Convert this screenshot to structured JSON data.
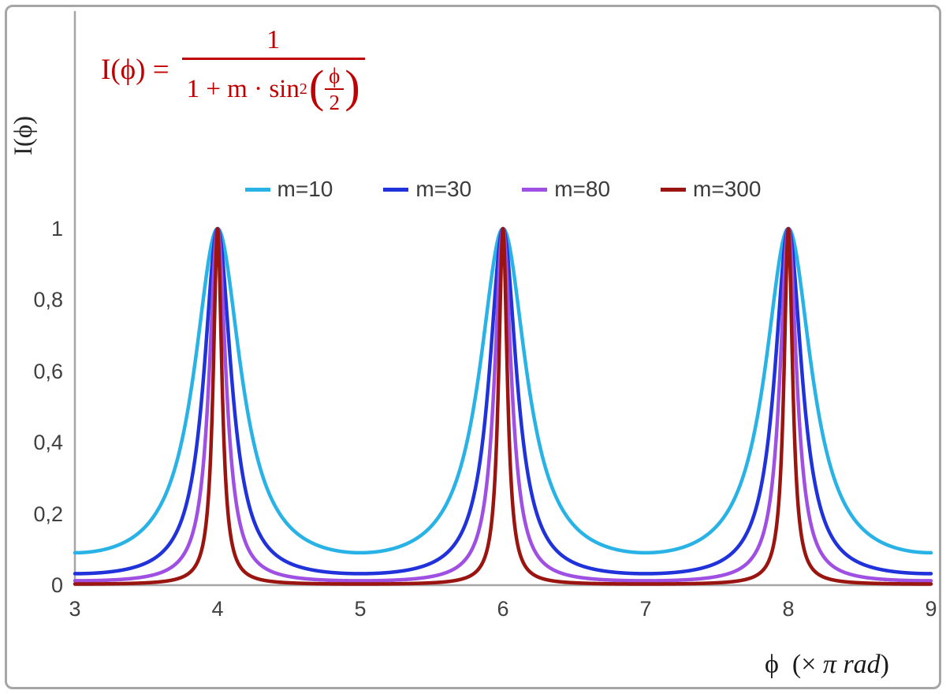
{
  "colors": {
    "axis": "#a6a6a6",
    "frame": "#a6a6a6",
    "tick_text": "#404040",
    "formula_red": "#c00000"
  },
  "formula": {
    "lhs": "I(ϕ) =",
    "numerator": "1",
    "denominator_prefix": "1 + m · sin",
    "denominator_sup": "2",
    "paren_open": "(",
    "paren_close": ")",
    "inner_numerator": "ϕ",
    "inner_denominator": "2",
    "color": "#c00000"
  },
  "y_axis": {
    "title": "I(ϕ)",
    "ticks": [
      {
        "value": 0,
        "label": "0"
      },
      {
        "value": 0.2,
        "label": "0,2"
      },
      {
        "value": 0.4,
        "label": "0,4"
      },
      {
        "value": 0.6,
        "label": "0,6"
      },
      {
        "value": 0.8,
        "label": "0,8"
      },
      {
        "value": 1,
        "label": "1"
      }
    ]
  },
  "x_axis": {
    "title_pre": "ϕ  (× ",
    "title_italic": "π rad",
    "title_post": ")",
    "ticks": [
      {
        "value": 3,
        "label": "3"
      },
      {
        "value": 4,
        "label": "4"
      },
      {
        "value": 5,
        "label": "5"
      },
      {
        "value": 6,
        "label": "6"
      },
      {
        "value": 7,
        "label": "7"
      },
      {
        "value": 8,
        "label": "8"
      },
      {
        "value": 9,
        "label": "9"
      }
    ]
  },
  "legend": [
    {
      "label": "m=10",
      "color": "#29b2e5"
    },
    {
      "label": "m=30",
      "color": "#2032d9"
    },
    {
      "label": "m=80",
      "color": "#a04fe3"
    },
    {
      "label": "m=300",
      "color": "#9a1410"
    }
  ],
  "chart_data": {
    "type": "line",
    "title": "",
    "function": "I(phi) = 1 / (1 + m * sin^2(phi/2))",
    "x_axis": {
      "label": "ϕ (× π rad)",
      "min": 3,
      "max": 9,
      "ticks": [
        3,
        4,
        5,
        6,
        7,
        8,
        9
      ],
      "units": "π rad"
    },
    "y_axis": {
      "label": "I(ϕ)",
      "min": 0,
      "max": 1,
      "ticks": [
        0,
        0.2,
        0.4,
        0.6,
        0.8,
        1
      ]
    },
    "series": [
      {
        "name": "m=10",
        "m": 10,
        "color": "#29b2e5"
      },
      {
        "name": "m=30",
        "m": 30,
        "color": "#2032d9"
      },
      {
        "name": "m=80",
        "m": 80,
        "color": "#a04fe3"
      },
      {
        "name": "m=300",
        "m": 300,
        "color": "#9a1410"
      }
    ],
    "peaks_x": [
      4,
      6,
      8
    ],
    "peak_value": 1,
    "value_at_odd_multiples": "1/(1+m)",
    "legend_position": "top-center",
    "grid": false
  }
}
